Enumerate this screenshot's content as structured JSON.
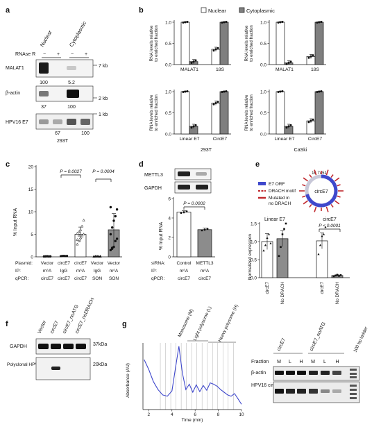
{
  "panels": {
    "a": {
      "letter": "a",
      "columns": [
        "Nuclear",
        "Cytoplasmic"
      ],
      "rnase_label": "RNAse R",
      "rnase_marks": [
        "−",
        "+",
        "−",
        "+"
      ],
      "blots": [
        {
          "name": "MALAT1",
          "size": "7 kb",
          "values": [
            "100",
            "5.2"
          ]
        },
        {
          "name": "β-actin",
          "size": "2 kb",
          "values": [
            "37",
            "100"
          ]
        },
        {
          "name": "HPV16 E7",
          "size": "1 kb",
          "values": [
            "67",
            "100"
          ]
        }
      ],
      "cell_line": "293T"
    },
    "b": {
      "letter": "b",
      "legend": [
        "Nuclear",
        "Cytoplasmic"
      ],
      "ylabel": [
        "RNA levels relative",
        "to enriched fraction"
      ],
      "yticks": [
        "0.0",
        "0.5",
        "1.0"
      ],
      "cell_lines": [
        "293T",
        "CaSki"
      ]
    },
    "c": {
      "letter": "c",
      "ylabel": "% Input RNA",
      "yticks": [
        "0",
        "5",
        "10",
        "15",
        "20"
      ],
      "p_values": [
        "P = 0.0027",
        "P = 0.0004"
      ],
      "row_labels": [
        "Plasmid:",
        "IP:",
        "qPCR:"
      ],
      "plasmid": [
        "Vector",
        "circE7",
        "circE7",
        "Vector",
        "Vector"
      ],
      "ip": [
        "m⁶A",
        "IgG",
        "m⁶A",
        "IgG",
        "m⁶A"
      ],
      "qpcr": [
        "circE7",
        "circE7",
        "circE7",
        "SON",
        "SON"
      ]
    },
    "d": {
      "letter": "d",
      "blots": [
        "METTL3",
        "GAPDH"
      ],
      "ylabel": "% Input RNA",
      "yticks": [
        "0",
        "2",
        "4",
        "6"
      ],
      "p_value": "P = 0.0002",
      "row_labels": [
        "siRNA:",
        "IP:",
        "qPCR:"
      ],
      "sirna": [
        "Control",
        "METTL3"
      ],
      "ip": [
        "m⁶A",
        "m⁶A"
      ],
      "qpcr": [
        "circE7",
        "circE7"
      ]
    },
    "e": {
      "letter": "e",
      "position": "16 7451",
      "circ_label": "circE7",
      "legend": [
        "E7 ORF",
        "DRACH motif",
        "Mutated in",
        "no DRACH"
      ],
      "ylabel": "Normalized expression",
      "yticks": [
        "0.0",
        "0.5",
        "1.0",
        "1.5"
      ],
      "titles": [
        "Linear E7",
        "circE7"
      ],
      "p_value": "P < 0.0001",
      "xlabels": [
        "circE7",
        "No DRACH",
        "circE7",
        "No DRACH"
      ],
      "colors": {
        "orf": "#3f48cc",
        "drach": "#c0282d"
      }
    },
    "f": {
      "letter": "f",
      "lanes": [
        "Vector",
        "circE7",
        "circE7_noATG",
        "circE7_noDRACH"
      ],
      "blots": [
        {
          "name": "GAPDH",
          "size": "37kDa"
        },
        {
          "name": "Polyclonal HPV16 E7",
          "size": "20kDa"
        }
      ]
    },
    "g": {
      "letter": "g",
      "fractions": [
        "Monosome (M)",
        "Light polysome (L)",
        "Heavy polysome (H)"
      ],
      "ylabel": "Absorbance (AU)",
      "xlabel": "Time (min)",
      "xticks": [
        "2",
        "4",
        "6",
        "8",
        "10"
      ],
      "gel_groups": [
        "circE7",
        "circE7_noATG"
      ],
      "ladder": "100 bp ladder",
      "fraction_row_label": "Fraction",
      "fraction_marks": [
        "M",
        "L",
        "H",
        "M",
        "L",
        "H"
      ],
      "blots": [
        "β-actin",
        "HPV16 circE7"
      ]
    }
  },
  "chart_data": [
    {
      "type": "bar",
      "panel": "b",
      "title": "293T",
      "categories": [
        "MALAT1",
        "18S"
      ],
      "series": [
        {
          "name": "Nuclear",
          "values": [
            1.0,
            0.36
          ]
        },
        {
          "name": "Cytoplasmic",
          "values": [
            0.07,
            1.0
          ]
        }
      ],
      "ylim": [
        0,
        1.0
      ]
    },
    {
      "type": "bar",
      "panel": "b",
      "title": "CaSki",
      "categories": [
        "MALAT1",
        "18S"
      ],
      "series": [
        {
          "name": "Nuclear",
          "values": [
            1.0,
            0.19
          ]
        },
        {
          "name": "Cytoplasmic",
          "values": [
            0.04,
            1.0
          ]
        }
      ],
      "ylim": [
        0,
        1.0
      ]
    },
    {
      "type": "bar",
      "panel": "b",
      "title": "293T",
      "categories": [
        "Linear E7",
        "CircE7"
      ],
      "series": [
        {
          "name": "Nuclear",
          "values": [
            1.0,
            0.73
          ]
        },
        {
          "name": "Cytoplasmic",
          "values": [
            0.18,
            1.0
          ]
        }
      ],
      "ylim": [
        0,
        1.0
      ]
    },
    {
      "type": "bar",
      "panel": "b",
      "title": "CaSki",
      "categories": [
        "Linear E7",
        "CircE7"
      ],
      "series": [
        {
          "name": "Nuclear",
          "values": [
            1.0,
            0.31
          ]
        },
        {
          "name": "Cytoplasmic",
          "values": [
            0.18,
            1.0
          ]
        }
      ],
      "ylim": [
        0,
        1.0
      ]
    },
    {
      "type": "bar",
      "panel": "c",
      "categories": [
        "Vector/m6A/circE7",
        "circE7/IgG/circE7",
        "circE7/m6A/circE7",
        "Vector/IgG/SON",
        "Vector/m6A/SON"
      ],
      "values": [
        0.1,
        0.2,
        5.0,
        0.1,
        6.0
      ],
      "ylabel": "% Input RNA",
      "ylim": [
        0,
        20
      ]
    },
    {
      "type": "bar",
      "panel": "d",
      "categories": [
        "Control",
        "METTL3"
      ],
      "values": [
        4.6,
        2.8
      ],
      "ylabel": "% Input RNA",
      "ylim": [
        0,
        6
      ]
    },
    {
      "type": "bar",
      "panel": "e",
      "categories": [
        "Linear E7 circE7",
        "Linear E7 No DRACH",
        "circE7 circE7",
        "circE7 No DRACH"
      ],
      "values": [
        1.0,
        1.08,
        1.02,
        0.06
      ],
      "ylabel": "Normalized expression",
      "ylim": [
        0,
        1.5
      ]
    },
    {
      "type": "line",
      "panel": "g",
      "x": [
        1.6,
        2.0,
        2.4,
        2.8,
        3.2,
        3.6,
        4.0,
        4.3,
        4.6,
        4.9,
        5.2,
        5.5,
        5.8,
        6.1,
        6.4,
        6.7,
        7.0,
        7.3,
        7.6,
        7.9,
        8.2,
        8.5,
        8.8,
        9.1,
        9.4,
        9.7,
        10.0
      ],
      "y": [
        0.75,
        0.6,
        0.42,
        0.3,
        0.22,
        0.2,
        0.28,
        0.62,
        0.95,
        0.55,
        0.3,
        0.38,
        0.26,
        0.37,
        0.27,
        0.36,
        0.29,
        0.4,
        0.38,
        0.35,
        0.3,
        0.26,
        0.22,
        0.2,
        0.24,
        0.16,
        0.08
      ],
      "xlabel": "Time (min)",
      "ylabel": "Absorbance (AU)",
      "xlim": [
        1.5,
        10
      ]
    }
  ]
}
